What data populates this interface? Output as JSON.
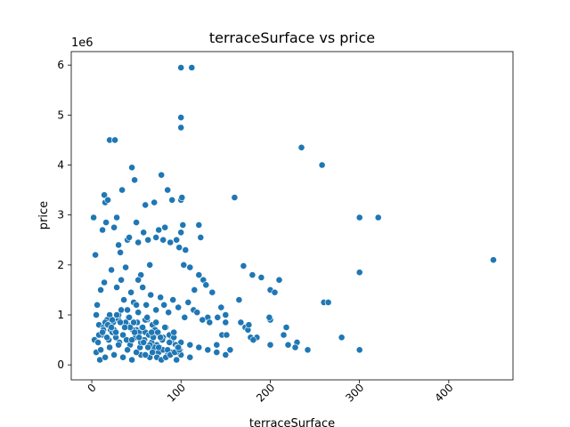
{
  "chart_data": {
    "type": "scatter",
    "title": "terraceSurface vs price",
    "xlabel": "terraceSurface",
    "ylabel": "price",
    "y_offset_label": "1e6",
    "xlim": [
      -23,
      472
    ],
    "ylim": [
      -300000,
      6270000
    ],
    "x_ticks": [
      0,
      100,
      200,
      300,
      400
    ],
    "x_tick_labels": [
      "0",
      "100",
      "200",
      "300",
      "400"
    ],
    "y_ticks": [
      0,
      1000000,
      2000000,
      3000000,
      4000000,
      5000000,
      6000000
    ],
    "y_tick_labels": [
      "0",
      "1",
      "2",
      "3",
      "4",
      "5",
      "6"
    ],
    "x_tick_rotation": 45,
    "grid": false,
    "legend": "none",
    "colors": {
      "marker": "#1f77b4",
      "marker_edge": "#ffffff",
      "axis": "#000000"
    },
    "series": [
      {
        "x": [
          2,
          4,
          12,
          14,
          15,
          16,
          18,
          20,
          25,
          26,
          28,
          30,
          32,
          34,
          38,
          40,
          42,
          45,
          48,
          50,
          52,
          55,
          58,
          60,
          63,
          65,
          70,
          72,
          75,
          78,
          80,
          82,
          85,
          88,
          90,
          95,
          98,
          100,
          100,
          100,
          100,
          100,
          101,
          102,
          103,
          105,
          110,
          112,
          115,
          120,
          120,
          122,
          125,
          128,
          130,
          135,
          140,
          145,
          150,
          150,
          155,
          160,
          165,
          170,
          172,
          175,
          178,
          180,
          185,
          190,
          200,
          200,
          200,
          205,
          210,
          218,
          220,
          230,
          235,
          242,
          258,
          260,
          265,
          280,
          300,
          300,
          300,
          321,
          450,
          6,
          10,
          14,
          22,
          28,
          33,
          36,
          44,
          47,
          52,
          57,
          61,
          66,
          72,
          77,
          81,
          86,
          91,
          97,
          104,
          108,
          114,
          118,
          124,
          132,
          141,
          146,
          151,
          167,
          176,
          181,
          199,
          215,
          228,
          20,
          30,
          40,
          50,
          60,
          70,
          80,
          90,
          100,
          110,
          120,
          130,
          140,
          150,
          8,
          11,
          13,
          17,
          19,
          21,
          23,
          24,
          27,
          29,
          31,
          35,
          37,
          39,
          41,
          43,
          46,
          49,
          51,
          53,
          54,
          56,
          59,
          62,
          64,
          67,
          68,
          69,
          71,
          73,
          74,
          76,
          79,
          83,
          84,
          87,
          89,
          92,
          93,
          94,
          96,
          99,
          5,
          9,
          15,
          25,
          35,
          45,
          55,
          65,
          75,
          85,
          95,
          30,
          40,
          50,
          60,
          10,
          20,
          30,
          40,
          50,
          60,
          70,
          80,
          90,
          100,
          110,
          5,
          15,
          25,
          35,
          45,
          55,
          65,
          75,
          85,
          95,
          3,
          8,
          13,
          18,
          23,
          28,
          33,
          38,
          43,
          48,
          53,
          58,
          63,
          68,
          73,
          78,
          83,
          88,
          93,
          98,
          12,
          22,
          32,
          42,
          52,
          62,
          72,
          82,
          92,
          7,
          17,
          27,
          37,
          47,
          57,
          67,
          77,
          87,
          97
        ],
        "y": [
          2950000,
          2200000,
          2700000,
          3400000,
          3250000,
          2850000,
          3300000,
          4500000,
          2750000,
          4500000,
          2950000,
          2400000,
          2250000,
          3500000,
          1950000,
          2500000,
          2550000,
          3950000,
          3700000,
          2850000,
          2450000,
          1800000,
          2650000,
          3200000,
          2500000,
          2000000,
          3250000,
          2550000,
          2700000,
          3800000,
          2500000,
          2750000,
          3500000,
          2450000,
          3300000,
          2500000,
          2350000,
          5950000,
          4950000,
          4750000,
          3300000,
          2650000,
          3350000,
          2800000,
          2000000,
          2300000,
          1950000,
          5950000,
          1500000,
          1800000,
          2800000,
          2550000,
          1700000,
          1600000,
          950000,
          1450000,
          400000,
          1150000,
          1000000,
          850000,
          300000,
          3350000,
          1300000,
          1980000,
          750000,
          700000,
          550000,
          1800000,
          550000,
          1750000,
          1500000,
          900000,
          400000,
          1450000,
          1700000,
          750000,
          400000,
          450000,
          4350000,
          300000,
          4000000,
          1250000,
          1250000,
          550000,
          2950000,
          1850000,
          300000,
          2950000,
          2100000,
          1200000,
          1500000,
          1650000,
          1900000,
          1550000,
          1700000,
          1300000,
          1450000,
          1250000,
          1700000,
          1550000,
          1200000,
          1400000,
          1100000,
          1350000,
          1200000,
          1050000,
          1300000,
          1150000,
          950000,
          1250000,
          1100000,
          1050000,
          900000,
          850000,
          950000,
          600000,
          600000,
          850000,
          800000,
          500000,
          950000,
          600000,
          350000,
          1000000,
          900000,
          800000,
          700000,
          650000,
          600000,
          550000,
          500000,
          450000,
          400000,
          350000,
          300000,
          250000,
          200000,
          800000,
          600000,
          750000,
          900000,
          500000,
          700000,
          650000,
          850000,
          550000,
          1000000,
          450000,
          600000,
          750000,
          500000,
          950000,
          400000,
          700000,
          550000,
          850000,
          650000,
          350000,
          750000,
          500000,
          900000,
          600000,
          450000,
          800000,
          550000,
          700000,
          400000,
          650000,
          350000,
          500000,
          750000,
          300000,
          600000,
          450000,
          550000,
          250000,
          400000,
          350000,
          300000,
          250000,
          100000,
          150000,
          200000,
          150000,
          100000,
          200000,
          150000,
          250000,
          200000,
          100000,
          1000000,
          1100000,
          1200000,
          900000,
          300000,
          350000,
          400000,
          300000,
          250000,
          200000,
          350000,
          300000,
          250000,
          200000,
          150000,
          1000000,
          850000,
          700000,
          600000,
          500000,
          450000,
          400000,
          350000,
          300000,
          250000,
          500000,
          600000,
          700000,
          800000,
          900000,
          1000000,
          1100000,
          850000,
          750000,
          650000,
          550000,
          450000,
          350000,
          250000,
          150000,
          100000,
          150000,
          200000,
          250000,
          300000,
          650000,
          750000,
          850000,
          950000,
          1050000,
          950000,
          850000,
          750000,
          650000,
          450000,
          550000,
          650000,
          750000,
          850000,
          750000,
          650000,
          550000,
          450000,
          350000
        ]
      }
    ]
  }
}
